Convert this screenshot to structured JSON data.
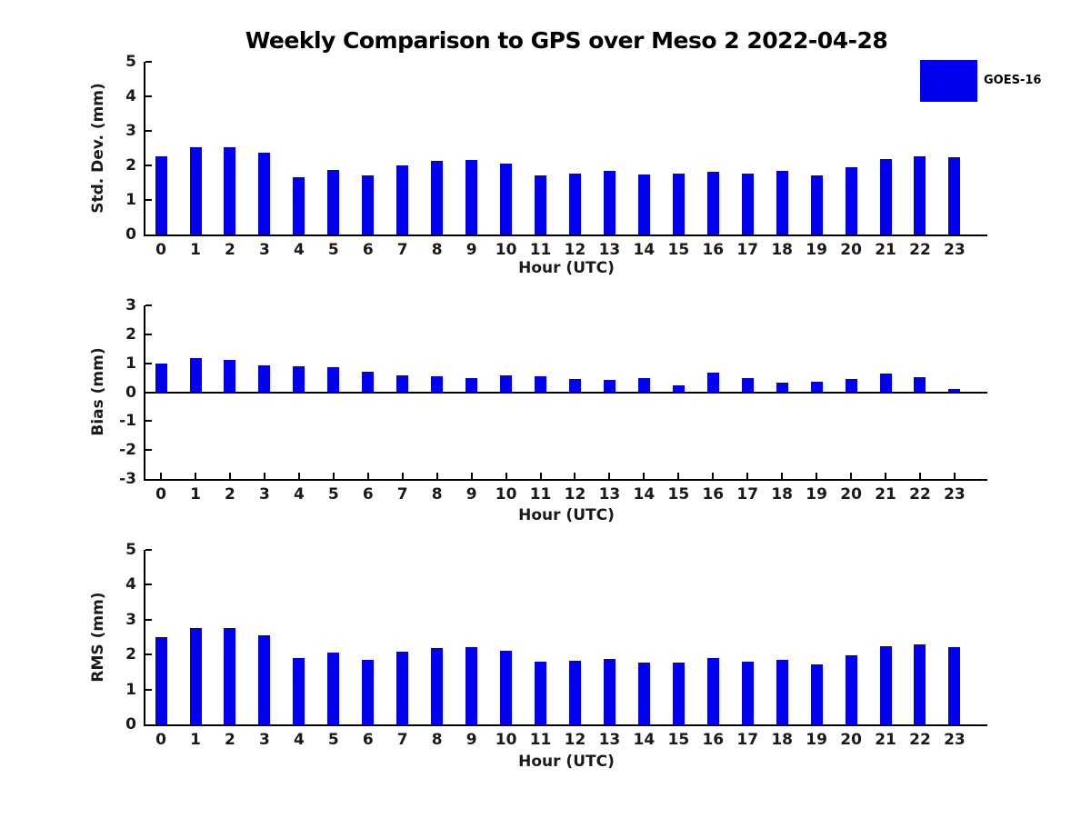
{
  "title": "Weekly Comparison to GPS over Meso 2 2022-04-28",
  "legend": {
    "label": "GOES-16",
    "position": "top-right"
  },
  "colors": {
    "bar": "#0000ee",
    "axis": "#000000",
    "tick_label": "#1a1a1a",
    "background": "#ffffff"
  },
  "chart_data": [
    {
      "type": "bar",
      "title": "",
      "ylabel": "Std. Dev. (mm)",
      "xlabel": "Hour (UTC)",
      "ylim": [
        0,
        5
      ],
      "yticks": [
        0,
        1,
        2,
        3,
        4,
        5
      ],
      "xlim": [
        -0.45,
        23.95
      ],
      "grid": false,
      "legend_entries": [
        "GOES-16"
      ],
      "categories": [
        "0",
        "1",
        "2",
        "3",
        "4",
        "5",
        "6",
        "7",
        "8",
        "9",
        "10",
        "11",
        "12",
        "13",
        "14",
        "15",
        "16",
        "17",
        "18",
        "19",
        "20",
        "21",
        "22",
        "23"
      ],
      "series": [
        {
          "name": "GOES-16",
          "values": [
            2.27,
            2.53,
            2.53,
            2.38,
            1.67,
            1.86,
            1.7,
            2.01,
            2.12,
            2.15,
            2.05,
            1.72,
            1.76,
            1.83,
            1.74,
            1.77,
            1.82,
            1.76,
            1.84,
            1.72,
            1.96,
            2.19,
            2.27,
            2.25
          ]
        }
      ]
    },
    {
      "type": "bar",
      "title": "",
      "ylabel": "Bias (mm)",
      "xlabel": "Hour (UTC)",
      "ylim": [
        -3,
        3
      ],
      "yticks": [
        -3,
        -2,
        -1,
        0,
        1,
        2,
        3
      ],
      "xlim": [
        -0.45,
        23.95
      ],
      "grid": false,
      "zero_line": true,
      "legend_entries": [
        "GOES-16"
      ],
      "categories": [
        "0",
        "1",
        "2",
        "3",
        "4",
        "5",
        "6",
        "7",
        "8",
        "9",
        "10",
        "11",
        "12",
        "13",
        "14",
        "15",
        "16",
        "17",
        "18",
        "19",
        "20",
        "21",
        "22",
        "23"
      ],
      "series": [
        {
          "name": "GOES-16",
          "values": [
            1.0,
            1.19,
            1.1,
            0.92,
            0.88,
            0.85,
            0.7,
            0.57,
            0.54,
            0.48,
            0.59,
            0.54,
            0.47,
            0.43,
            0.48,
            0.25,
            0.66,
            0.48,
            0.34,
            0.37,
            0.45,
            0.64,
            0.53,
            0.12
          ]
        }
      ]
    },
    {
      "type": "bar",
      "title": "",
      "ylabel": "RMS (mm)",
      "xlabel": "Hour (UTC)",
      "ylim": [
        0,
        5
      ],
      "yticks": [
        0,
        1,
        2,
        3,
        4,
        5
      ],
      "xlim": [
        -0.45,
        23.95
      ],
      "grid": false,
      "legend_entries": [
        "GOES-16"
      ],
      "categories": [
        "0",
        "1",
        "2",
        "3",
        "4",
        "5",
        "6",
        "7",
        "8",
        "9",
        "10",
        "11",
        "12",
        "13",
        "14",
        "15",
        "16",
        "17",
        "18",
        "19",
        "20",
        "21",
        "22",
        "23"
      ],
      "series": [
        {
          "name": "GOES-16",
          "values": [
            2.49,
            2.77,
            2.75,
            2.55,
            1.9,
            2.05,
            1.85,
            2.09,
            2.19,
            2.21,
            2.12,
            1.8,
            1.81,
            1.87,
            1.78,
            1.76,
            1.9,
            1.8,
            1.84,
            1.72,
            1.97,
            2.24,
            2.29,
            2.21
          ]
        }
      ]
    }
  ]
}
